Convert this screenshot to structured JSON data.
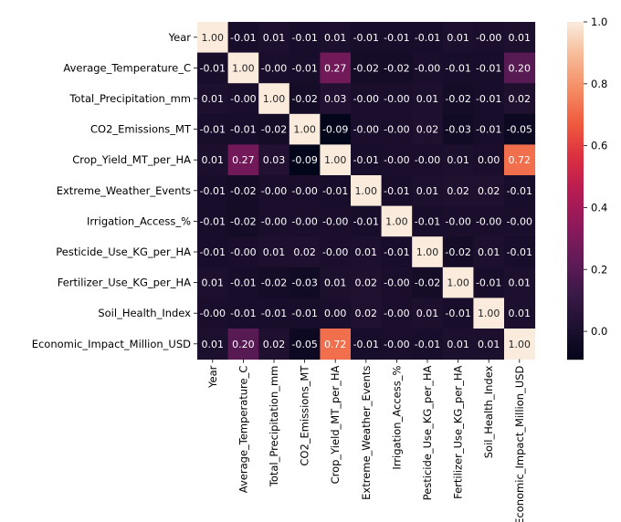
{
  "chart_data": {
    "type": "heatmap",
    "labels": [
      "Year",
      "Average_Temperature_C",
      "Total_Precipitation_mm",
      "CO2_Emissions_MT",
      "Crop_Yield_MT_per_HA",
      "Extreme_Weather_Events",
      "Irrigation_Access_%",
      "Pesticide_Use_KG_per_HA",
      "Fertilizer_Use_KG_per_HA",
      "Soil_Health_Index",
      "Economic_Impact_Million_USD"
    ],
    "matrix": [
      [
        1.0,
        -0.01,
        0.01,
        -0.01,
        0.01,
        -0.01,
        -0.01,
        -0.01,
        0.01,
        -0.0,
        0.01
      ],
      [
        -0.01,
        1.0,
        -0.0,
        -0.01,
        0.27,
        -0.02,
        -0.02,
        -0.0,
        -0.01,
        -0.01,
        0.2
      ],
      [
        0.01,
        -0.0,
        1.0,
        -0.02,
        0.03,
        -0.0,
        -0.0,
        0.01,
        -0.02,
        -0.01,
        0.02
      ],
      [
        -0.01,
        -0.01,
        -0.02,
        1.0,
        -0.09,
        -0.0,
        -0.0,
        0.02,
        -0.03,
        -0.01,
        -0.05
      ],
      [
        0.01,
        0.27,
        0.03,
        -0.09,
        1.0,
        -0.01,
        -0.0,
        -0.0,
        0.01,
        0.0,
        0.72
      ],
      [
        -0.01,
        -0.02,
        -0.0,
        -0.0,
        -0.01,
        1.0,
        -0.01,
        0.01,
        0.02,
        0.02,
        -0.01
      ],
      [
        -0.01,
        -0.02,
        -0.0,
        -0.0,
        -0.0,
        -0.01,
        1.0,
        -0.01,
        -0.0,
        -0.0,
        -0.0
      ],
      [
        -0.01,
        -0.0,
        0.01,
        0.02,
        -0.0,
        0.01,
        -0.01,
        1.0,
        -0.02,
        0.01,
        -0.01
      ],
      [
        0.01,
        -0.01,
        -0.02,
        -0.03,
        0.01,
        0.02,
        -0.0,
        -0.02,
        1.0,
        -0.01,
        0.01
      ],
      [
        -0.0,
        -0.01,
        -0.01,
        -0.01,
        0.0,
        0.02,
        -0.0,
        0.01,
        -0.01,
        1.0,
        0.01
      ],
      [
        0.01,
        0.2,
        0.02,
        -0.05,
        0.72,
        -0.01,
        -0.0,
        -0.01,
        0.01,
        0.01,
        1.0
      ]
    ],
    "value_format": "2 decimals",
    "colormap": "rocket",
    "colorbar": {
      "range": [
        -0.09,
        1.0
      ],
      "ticks": [
        "0.0",
        "0.2",
        "0.4",
        "0.6",
        "0.8",
        "1.0"
      ]
    }
  }
}
